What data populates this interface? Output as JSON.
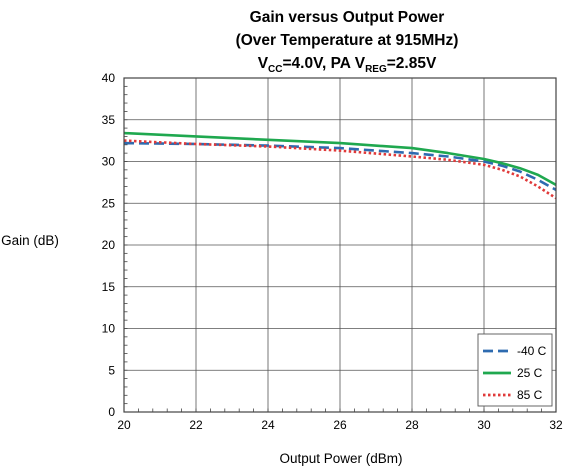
{
  "chart_data": {
    "type": "line",
    "title": {
      "line1": "Gain versus Output Power",
      "line2": "(Over Temperature at 915MHz)",
      "line3": {
        "v": "V",
        "cc_sub": "CC",
        "mid": "=4.0V, PA V",
        "reg_sub": "REG",
        "end": "=2.85V"
      }
    },
    "xlabel": "Output Power (dBm)",
    "ylabel": "Gain (dB)",
    "xlim": [
      20,
      32
    ],
    "ylim": [
      0,
      40
    ],
    "x_ticks": [
      "20",
      "22",
      "24",
      "26",
      "28",
      "30",
      "32"
    ],
    "y_ticks": [
      "0",
      "5",
      "10",
      "15",
      "20",
      "25",
      "30",
      "35",
      "40"
    ],
    "grid": true,
    "minor_ticks": true,
    "legend_position": "bottom-right",
    "series": [
      {
        "name": "-40 C",
        "color": "#2e6bb0",
        "dash": "long-dash",
        "x": [
          20,
          22,
          24,
          26,
          28,
          29,
          30,
          30.5,
          31,
          31.5,
          32
        ],
        "y": [
          32.2,
          32.1,
          31.9,
          31.6,
          31.0,
          30.6,
          30.0,
          29.5,
          28.8,
          27.8,
          26.6
        ]
      },
      {
        "name": "25 C",
        "color": "#1fa84f",
        "dash": "solid",
        "x": [
          20,
          22,
          24,
          26,
          28,
          29,
          30,
          30.5,
          31,
          31.5,
          32
        ],
        "y": [
          33.4,
          33.0,
          32.6,
          32.2,
          31.6,
          31.0,
          30.3,
          29.8,
          29.2,
          28.4,
          27.2
        ]
      },
      {
        "name": "85 C",
        "color": "#e03a3a",
        "dash": "dotted",
        "x": [
          20,
          22,
          24,
          26,
          28,
          29,
          30,
          30.5,
          31,
          31.5,
          32
        ],
        "y": [
          32.5,
          32.1,
          31.8,
          31.3,
          30.6,
          30.2,
          29.6,
          29.0,
          28.2,
          27.0,
          25.6
        ]
      }
    ]
  }
}
